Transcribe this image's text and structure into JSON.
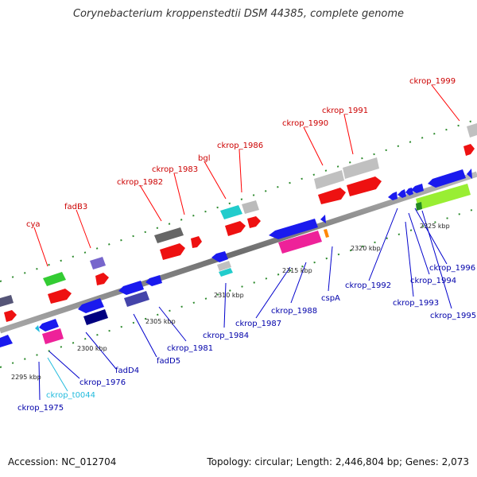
{
  "title": "Corynebacterium kroppenstedtii DSM 44385, complete genome",
  "accession": "Accession: NC_012704",
  "summary": "Topology: circular; Length: 2,446,804 bp; Genes: 2,073",
  "colors": {
    "forward_label": "#cc0000",
    "reverse_label": "#0000aa",
    "trna_label": "#22bbdd",
    "backbone": "#8c8c8c",
    "tick": "#1f7a1f"
  },
  "ruler": [
    "2295 kbp",
    "2300 kbp",
    "2305 kbp",
    "2310 kbp",
    "2315 kbp",
    "2320 kbp",
    "2325 kbp"
  ],
  "forward_labels": [
    "cya",
    "fadB3",
    "ckrop_1982",
    "ckrop_1983",
    "bgl",
    "ckrop_1986",
    "ckrop_1990",
    "ckrop_1991",
    "ckrop_1999"
  ],
  "reverse_labels": [
    "ckrop_1975",
    "ckrop_t0044",
    "ckrop_1976",
    "fadD4",
    "fadD5",
    "ckrop_1981",
    "ckrop_1984",
    "ckrop_1987",
    "ckrop_1988",
    "cspA",
    "ckrop_1992",
    "ckrop_1993",
    "ckrop_1994",
    "ckrop_1996",
    "ckrop_1995"
  ]
}
